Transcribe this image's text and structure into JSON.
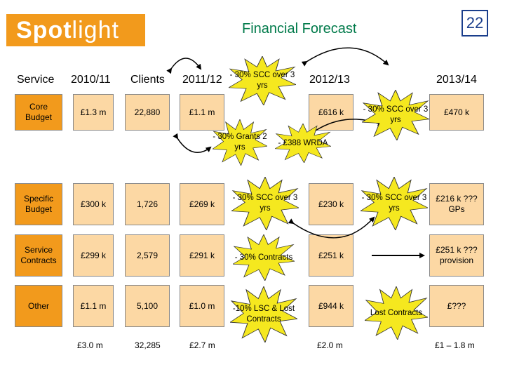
{
  "logo": {
    "bold": "Spot",
    "light": "light"
  },
  "title": "Financial Forecast",
  "page_number": "22",
  "headers": {
    "service": "Service",
    "y1": "2010/11",
    "clients": "Clients",
    "y2": "2011/12",
    "y3": "2012/13",
    "y4": "2013/14"
  },
  "rows": {
    "core": {
      "label": "Core Budget",
      "y1": "£1.3 m",
      "clients": "22,880",
      "y2": "£1.1 m",
      "y3": "£616 k",
      "y4": "£470 k"
    },
    "specific": {
      "label": "Specific Budget",
      "y1": "£300 k",
      "clients": "1,726",
      "y2": "£269 k",
      "y3": "£230 k",
      "y4": "£216 k ??? GPs"
    },
    "contracts": {
      "label": "Service Contracts",
      "y1": "£299 k",
      "clients": "2,579",
      "y2": "£291 k",
      "y3": "£251 k",
      "y4": "£251 k ??? provision"
    },
    "other": {
      "label": "Other",
      "y1": "£1.1 m",
      "clients": "5,100",
      "y2": "£1.0 m",
      "y3": "£944 k",
      "y4": "£???"
    }
  },
  "totals": {
    "y1": "£3.0 m",
    "clients": "32,285",
    "y2": "£2.7 m",
    "y3": "£2.0 m",
    "y4": "£1 – 1.8 m"
  },
  "bursts": {
    "b1": "- 30% SCC over 3 yrs",
    "b2": "- 30% SCC over 3 yrs",
    "b3": "- 30% Grants 2 yrs",
    "b4": "- £388 WRDA",
    "b5": "- 30% SCC over 3 yrs",
    "b6": "- 30% SCC over 3 yrs",
    "b7": "- 30% Contracts",
    "b8": "-10% LSC & Lost Contracts",
    "b9": "Lost Contracts"
  },
  "colors": {
    "orange": "#f29a1c",
    "peach": "#fcd8a4",
    "burst": "#f5e81f",
    "title": "#007a4a",
    "pagenum": "#1a3e8c"
  }
}
